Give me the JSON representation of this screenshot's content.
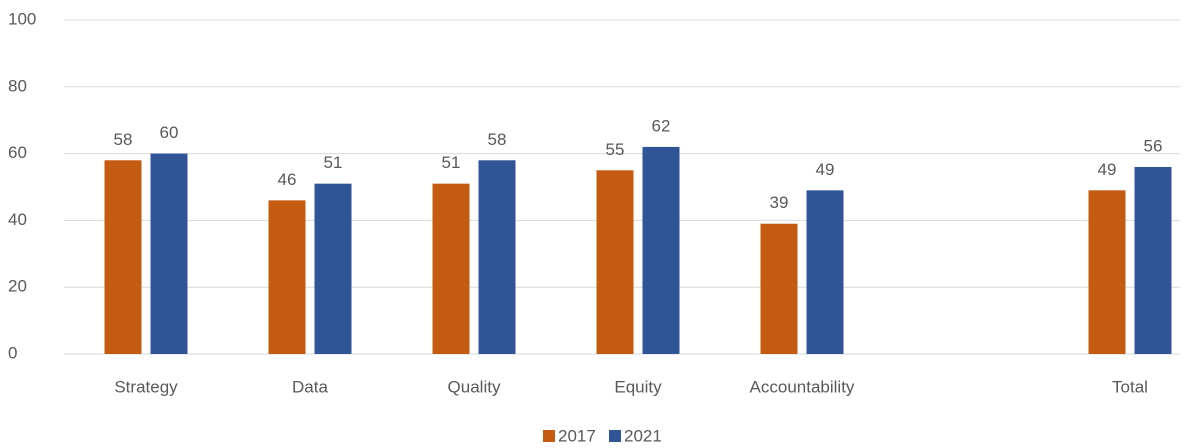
{
  "chart_data": {
    "type": "bar",
    "categories": [
      "Strategy",
      "Data",
      "Quality",
      "Equity",
      "Accountability",
      null,
      "Total"
    ],
    "series": [
      {
        "name": "2017",
        "color": "#c55a11",
        "values": [
          58,
          46,
          51,
          55,
          39,
          null,
          49
        ]
      },
      {
        "name": "2021",
        "color": "#2f5597",
        "values": [
          60,
          51,
          58,
          62,
          49,
          null,
          56
        ]
      }
    ],
    "ylim": [
      0,
      100
    ],
    "yticks": [
      0,
      20,
      40,
      60,
      80,
      100
    ],
    "grid": true,
    "legend": "bottom"
  }
}
